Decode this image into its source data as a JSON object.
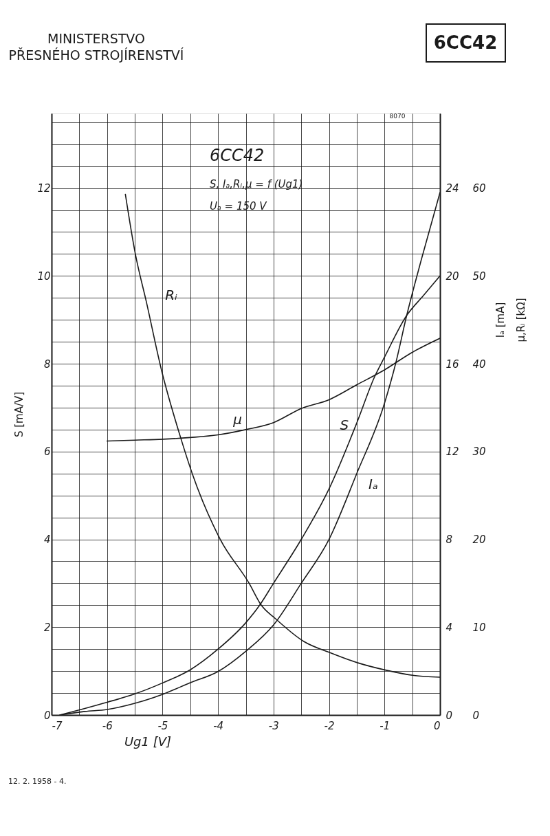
{
  "chart_data": {
    "type": "line",
    "title": "MINISTERSTVO\nPŘESNÉHO STROJÍRENSTVÍ",
    "subtitle": "6CC42",
    "xlabel": "Ug1 [V]",
    "ylabel": "S [mA/V]",
    "y2label": "Iₐ [mA]",
    "y3label": "μ,Rᵢ [kΩ]",
    "annotations": [
      "8070",
      "6CC42",
      "S, Iₐ,Rᵢ,μ = f (Ug1)",
      "Uₐ = 150 V",
      "12. 2. 1958 - 4."
    ],
    "xlim": [
      -7,
      0
    ],
    "xticks": [
      -7,
      {
        "value": -6.5,
        "label": null
      },
      -6,
      {
        "value": -5.5,
        "label": null
      },
      -5,
      {
        "value": -4.5,
        "label": null
      },
      -4,
      {
        "value": -3.5,
        "label": null
      },
      -3,
      {
        "value": -2.5,
        "label": null
      },
      -2,
      {
        "value": -1.5,
        "label": null
      },
      -1,
      {
        "value": -0.5,
        "label": null
      },
      0
    ],
    "ylim": [
      0,
      13.7
    ],
    "yticks": [
      0,
      {
        "value": 0.5,
        "label": null
      },
      {
        "value": 1,
        "label": null
      },
      {
        "value": 1.5,
        "label": null
      },
      2,
      {
        "value": 2.5,
        "label": null
      },
      {
        "value": 3,
        "label": null
      },
      {
        "value": 3.5,
        "label": null
      },
      4,
      {
        "value": 4.5,
        "label": null
      },
      {
        "value": 5,
        "label": null
      },
      {
        "value": 5.5,
        "label": null
      },
      6,
      {
        "value": 6.5,
        "label": null
      },
      {
        "value": 7,
        "label": null
      },
      {
        "value": 7.5,
        "label": null
      },
      8,
      {
        "value": 8.5,
        "label": null
      },
      {
        "value": 9,
        "label": null
      },
      {
        "value": 9.5,
        "label": null
      },
      10,
      {
        "value": 10.5,
        "label": null
      },
      {
        "value": 11,
        "label": null
      },
      {
        "value": 11.5,
        "label": null
      },
      12,
      {
        "value": 12.5,
        "label": null
      },
      {
        "value": 13,
        "label": null
      },
      {
        "value": 13.5,
        "label": null
      }
    ],
    "y2lim": [
      0,
      27.4
    ],
    "y2ticks": [
      0,
      4,
      8,
      12,
      16,
      20,
      24
    ],
    "y3lim": [
      0,
      68.5
    ],
    "y3ticks": [
      0,
      10,
      20,
      30,
      40,
      50,
      60
    ],
    "grid": true,
    "series": [
      {
        "name": "S",
        "color": "#1a1a1a",
        "axis": "y",
        "x": [
          -6.85,
          -6.4,
          -6,
          -5.5,
          -5,
          -4.5,
          -4,
          -3.5,
          -3.25,
          -3,
          -2.5,
          -2,
          -1.5,
          -1.18,
          -1,
          -0.6,
          -0.3,
          0
        ],
        "values": [
          0,
          0.15,
          0.29,
          0.48,
          0.73,
          1.03,
          1.5,
          2.1,
          2.5,
          3.0,
          4.0,
          5.15,
          6.65,
          7.7,
          8.15,
          9.1,
          9.55,
          10.0
        ]
      },
      {
        "name": "Iₐ",
        "color": "#1a1a1a",
        "axis": "y2",
        "x": [
          -6.85,
          -6.4,
          -6,
          -5.5,
          -5,
          -4.5,
          -4,
          -3.5,
          -3,
          -2.5,
          -2,
          -1.5,
          -1,
          -0.8,
          -0.6,
          -0.33,
          0
        ],
        "values": [
          0,
          0.16,
          0.25,
          0.53,
          0.94,
          1.47,
          1.98,
          2.9,
          4.1,
          6.0,
          8.0,
          11.0,
          14.2,
          16.0,
          18.2,
          20.8,
          23.8
        ]
      },
      {
        "name": "μ",
        "color": "#1a1a1a",
        "axis": "y3",
        "x": [
          -6,
          -5.5,
          -5,
          -4.5,
          -4,
          -3.5,
          -3,
          -2.5,
          -2,
          -1.5,
          -1,
          -0.5,
          0
        ],
        "values": [
          31.2,
          31.3,
          31.4,
          31.6,
          31.9,
          32.5,
          33.3,
          34.9,
          35.9,
          37.6,
          39.3,
          41.3,
          42.9
        ]
      },
      {
        "name": "Rᵢ",
        "color": "#1a1a1a",
        "axis": "y3",
        "x": [
          -5.67,
          -5.49,
          -5.29,
          -5.02,
          -4.67,
          -4.46,
          -3.96,
          -3.44,
          -3.22,
          -2.97,
          -2.46,
          -1.96,
          -1.46,
          -0.97,
          -0.47,
          0
        ],
        "values": [
          59.3,
          52.5,
          47.0,
          39.3,
          31.5,
          27.4,
          20.0,
          15.0,
          12.5,
          11.0,
          8.4,
          7.05,
          5.9,
          5.1,
          4.5,
          4.3
        ]
      }
    ]
  }
}
